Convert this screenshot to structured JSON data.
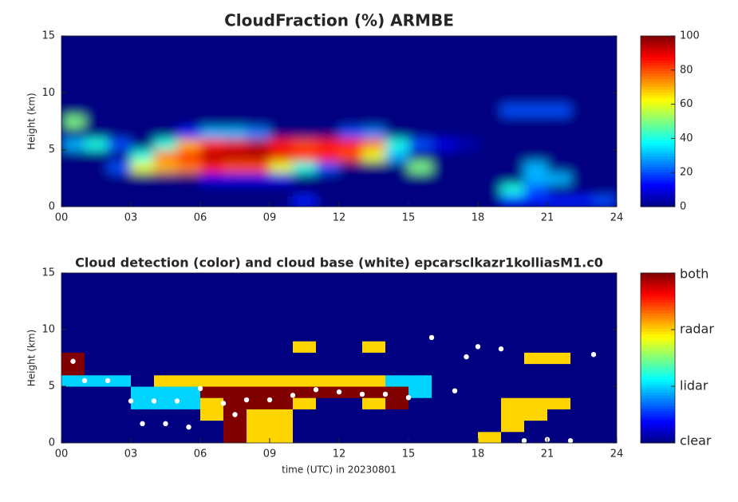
{
  "chart_data": [
    {
      "type": "heatmap",
      "title": "CloudFraction  (%) ARMBE",
      "ylabel": "Height (km)",
      "colormap": "jet",
      "x": [
        0.5,
        1.5,
        2.5,
        3.5,
        4.5,
        5.5,
        6.5,
        7.5,
        8.5,
        9.5,
        10.5,
        11.5,
        12.5,
        13.5,
        14.5,
        15.5,
        16.5,
        17.5,
        18.5,
        19.5,
        20.5,
        21.5,
        22.5,
        23.5
      ],
      "y": [
        0.5,
        1.5,
        2.5,
        3.5,
        4.5,
        5.5,
        6.5,
        7.5,
        8.5,
        9.5,
        10.5,
        11.5,
        12.5,
        13.5,
        14.5
      ],
      "z": [
        [
          0,
          0,
          0,
          0,
          0,
          0,
          0,
          0,
          0,
          0,
          15,
          0,
          0,
          0,
          0,
          0,
          0,
          0,
          0,
          15,
          15,
          15,
          15,
          20
        ],
        [
          0,
          0,
          0,
          0,
          0,
          0,
          0,
          0,
          0,
          0,
          0,
          0,
          0,
          0,
          0,
          0,
          0,
          0,
          0,
          40,
          20,
          0,
          0,
          0
        ],
        [
          0,
          0,
          0,
          0,
          0,
          0,
          10,
          10,
          10,
          10,
          0,
          0,
          0,
          0,
          0,
          0,
          0,
          0,
          0,
          0,
          30,
          30,
          0,
          0
        ],
        [
          0,
          0,
          20,
          60,
          70,
          75,
          85,
          80,
          80,
          60,
          40,
          20,
          0,
          0,
          0,
          50,
          0,
          0,
          0,
          0,
          30,
          0,
          0,
          0
        ],
        [
          0,
          0,
          0,
          40,
          75,
          85,
          95,
          95,
          95,
          90,
          85,
          85,
          80,
          60,
          30,
          0,
          0,
          0,
          0,
          0,
          0,
          0,
          0,
          0
        ],
        [
          30,
          40,
          20,
          0,
          40,
          70,
          85,
          90,
          95,
          85,
          80,
          85,
          85,
          75,
          40,
          20,
          10,
          5,
          0,
          0,
          0,
          0,
          0,
          0
        ],
        [
          0,
          0,
          0,
          0,
          0,
          15,
          30,
          30,
          25,
          0,
          0,
          0,
          20,
          25,
          0,
          0,
          0,
          0,
          0,
          0,
          0,
          0,
          0,
          0
        ],
        [
          50,
          0,
          0,
          0,
          0,
          0,
          0,
          0,
          0,
          0,
          0,
          0,
          0,
          0,
          0,
          0,
          0,
          0,
          0,
          0,
          0,
          0,
          0,
          0
        ],
        [
          0,
          0,
          0,
          0,
          0,
          0,
          0,
          0,
          0,
          0,
          0,
          0,
          0,
          0,
          0,
          0,
          0,
          0,
          0,
          20,
          20,
          20,
          0,
          0
        ],
        [
          0,
          0,
          0,
          0,
          0,
          0,
          0,
          0,
          0,
          0,
          0,
          0,
          0,
          0,
          0,
          0,
          0,
          0,
          0,
          0,
          0,
          0,
          0,
          0
        ],
        [
          0,
          0,
          0,
          0,
          0,
          0,
          0,
          0,
          0,
          0,
          0,
          0,
          0,
          0,
          0,
          0,
          0,
          0,
          0,
          0,
          0,
          0,
          0,
          0
        ],
        [
          0,
          0,
          0,
          0,
          0,
          0,
          0,
          0,
          0,
          0,
          0,
          0,
          0,
          0,
          0,
          0,
          0,
          0,
          0,
          0,
          0,
          0,
          0,
          0
        ],
        [
          0,
          0,
          0,
          0,
          0,
          0,
          0,
          0,
          0,
          0,
          0,
          0,
          0,
          0,
          0,
          0,
          0,
          0,
          0,
          0,
          0,
          0,
          0,
          0
        ],
        [
          0,
          0,
          0,
          0,
          0,
          0,
          0,
          0,
          0,
          0,
          0,
          0,
          0,
          0,
          0,
          0,
          0,
          0,
          0,
          0,
          0,
          0,
          0,
          0
        ],
        [
          0,
          0,
          0,
          0,
          0,
          0,
          0,
          0,
          0,
          0,
          0,
          0,
          0,
          0,
          0,
          0,
          0,
          0,
          0,
          0,
          0,
          0,
          0,
          0
        ]
      ],
      "xlim": [
        0,
        24
      ],
      "xticks": [
        {
          "value": 0,
          "label": "00"
        },
        {
          "value": 3,
          "label": "03"
        },
        {
          "value": 6,
          "label": "06"
        },
        {
          "value": 9,
          "label": "09"
        },
        {
          "value": 12,
          "label": "12"
        },
        {
          "value": 15,
          "label": "15"
        },
        {
          "value": 18,
          "label": "18"
        },
        {
          "value": 21,
          "label": "21"
        },
        {
          "value": 24,
          "label": "24"
        }
      ],
      "ylim": [
        0,
        15
      ],
      "yticks": [
        0,
        5,
        10,
        15
      ],
      "clim": [
        0,
        100
      ],
      "cticks": [
        0,
        20,
        40,
        60,
        80,
        100
      ]
    },
    {
      "type": "heatmap",
      "title": "Cloud detection (color) and cloud base (white) epcarsclkazr1kolliasM1.c0",
      "ylabel": "Height (km)",
      "xlabel": "time (UTC) in 20230801",
      "colormap": "jet",
      "x": [
        0.5,
        1.5,
        2.5,
        3.5,
        4.5,
        5.5,
        6.5,
        7.5,
        8.5,
        9.5,
        10.5,
        11.5,
        12.5,
        13.5,
        14.5,
        15.5,
        16.5,
        17.5,
        18.5,
        19.5,
        20.5,
        21.5,
        22.5,
        23.5
      ],
      "y": [
        0.5,
        1.5,
        2.5,
        3.5,
        4.5,
        5.5,
        6.5,
        7.5,
        8.5,
        9.5,
        10.5,
        11.5,
        12.5,
        13.5,
        14.5
      ],
      "z": [
        [
          0,
          0,
          0,
          0,
          0,
          0,
          0,
          3,
          2,
          2,
          0,
          0,
          0,
          0,
          0,
          0,
          0,
          0,
          2,
          0,
          0,
          0,
          0,
          0
        ],
        [
          0,
          0,
          0,
          0,
          0,
          0,
          0,
          3,
          2,
          2,
          0,
          0,
          0,
          0,
          0,
          0,
          0,
          0,
          0,
          2,
          0,
          0,
          0,
          0
        ],
        [
          0,
          0,
          0,
          0,
          0,
          0,
          2,
          3,
          2,
          2,
          0,
          0,
          0,
          0,
          0,
          0,
          0,
          0,
          0,
          2,
          2,
          0,
          0,
          0
        ],
        [
          0,
          0,
          0,
          1,
          1,
          1,
          2,
          3,
          3,
          3,
          2,
          0,
          0,
          2,
          3,
          0,
          0,
          0,
          0,
          2,
          2,
          2,
          0,
          0
        ],
        [
          0,
          0,
          0,
          1,
          1,
          1,
          3,
          3,
          3,
          3,
          3,
          3,
          3,
          3,
          3,
          1,
          0,
          0,
          0,
          0,
          0,
          0,
          0,
          0
        ],
        [
          1,
          1,
          1,
          0,
          2,
          2,
          2,
          2,
          2,
          2,
          2,
          2,
          2,
          2,
          1,
          1,
          0,
          0,
          0,
          0,
          0,
          0,
          0,
          0
        ],
        [
          3,
          0,
          0,
          0,
          0,
          0,
          0,
          0,
          0,
          0,
          0,
          0,
          0,
          0,
          0,
          0,
          0,
          0,
          0,
          0,
          0,
          0,
          0,
          0
        ],
        [
          3,
          0,
          0,
          0,
          0,
          0,
          0,
          0,
          0,
          0,
          0,
          0,
          0,
          0,
          0,
          0,
          0,
          0,
          0,
          0,
          2,
          2,
          0,
          0
        ],
        [
          0,
          0,
          0,
          0,
          0,
          0,
          0,
          0,
          0,
          0,
          2,
          0,
          0,
          2,
          0,
          0,
          0,
          0,
          0,
          0,
          0,
          0,
          0,
          0
        ],
        [
          0,
          0,
          0,
          0,
          0,
          0,
          0,
          0,
          0,
          0,
          0,
          0,
          0,
          0,
          0,
          0,
          0,
          0,
          0,
          0,
          0,
          0,
          0,
          0
        ],
        [
          0,
          0,
          0,
          0,
          0,
          0,
          0,
          0,
          0,
          0,
          0,
          0,
          0,
          0,
          0,
          0,
          0,
          0,
          0,
          0,
          0,
          0,
          0,
          0
        ],
        [
          0,
          0,
          0,
          0,
          0,
          0,
          0,
          0,
          0,
          0,
          0,
          0,
          0,
          0,
          0,
          0,
          0,
          0,
          0,
          0,
          0,
          0,
          0,
          0
        ],
        [
          0,
          0,
          0,
          0,
          0,
          0,
          0,
          0,
          0,
          0,
          0,
          0,
          0,
          0,
          0,
          0,
          0,
          0,
          0,
          0,
          0,
          0,
          0,
          0
        ],
        [
          0,
          0,
          0,
          0,
          0,
          0,
          0,
          0,
          0,
          0,
          0,
          0,
          0,
          0,
          0,
          0,
          0,
          0,
          0,
          0,
          0,
          0,
          0,
          0
        ],
        [
          0,
          0,
          0,
          0,
          0,
          0,
          0,
          0,
          0,
          0,
          0,
          0,
          0,
          0,
          0,
          0,
          0,
          0,
          0,
          0,
          0,
          0,
          0,
          0
        ]
      ],
      "points": {
        "color": "#ffffff",
        "x": [
          0.5,
          1,
          2,
          3,
          4,
          5,
          6,
          7,
          7.5,
          8,
          9,
          10,
          11,
          12,
          13,
          14,
          15,
          16,
          17,
          17.5,
          18,
          19,
          20,
          21,
          22,
          23,
          3.5,
          4.5,
          5.5
        ],
        "y": [
          7.2,
          5.5,
          5.5,
          3.7,
          3.7,
          3.7,
          4.8,
          3.5,
          2.5,
          3.8,
          3.8,
          4.2,
          4.7,
          4.5,
          4.3,
          4.3,
          4,
          9.3,
          4.6,
          7.6,
          8.5,
          8.3,
          0.2,
          0.3,
          0.2,
          7.8,
          1.7,
          1.7,
          1.4
        ]
      },
      "xlim": [
        0,
        24
      ],
      "xticks": [
        {
          "value": 0,
          "label": "00"
        },
        {
          "value": 3,
          "label": "03"
        },
        {
          "value": 6,
          "label": "06"
        },
        {
          "value": 9,
          "label": "09"
        },
        {
          "value": 12,
          "label": "12"
        },
        {
          "value": 15,
          "label": "15"
        },
        {
          "value": 18,
          "label": "18"
        },
        {
          "value": 21,
          "label": "21"
        },
        {
          "value": 24,
          "label": "24"
        }
      ],
      "ylim": [
        0,
        15
      ],
      "yticks": [
        0,
        5,
        10,
        15
      ],
      "clim": [
        0,
        3
      ],
      "cticks": [
        {
          "value": 0,
          "label": "clear"
        },
        {
          "value": 1,
          "label": "lidar"
        },
        {
          "value": 2,
          "label": "radar"
        },
        {
          "value": 3,
          "label": "both"
        }
      ]
    }
  ]
}
